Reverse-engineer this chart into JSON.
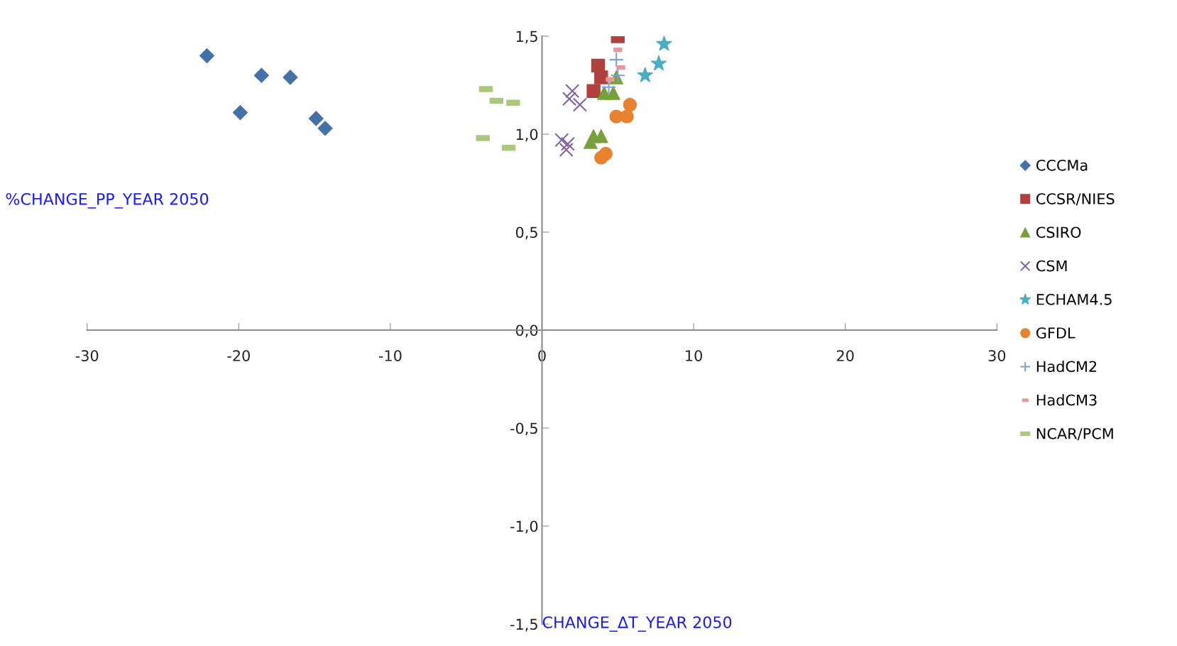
{
  "chart_data": {
    "type": "scatter",
    "xlabel": "CHANGE_ΔT_YEAR 2050",
    "ylabel": "%CHANGE_PP_YEAR 2050",
    "xlim": [
      -30,
      30
    ],
    "xticks": [
      -30,
      -20,
      -10,
      0,
      10,
      20,
      30
    ],
    "ylim": [
      -1.5,
      1.5
    ],
    "yticks": [
      {
        "value": -1.5,
        "label": "-1,5"
      },
      {
        "value": -1.0,
        "label": "-1,0"
      },
      {
        "value": -0.5,
        "label": "-0,5"
      },
      {
        "value": 0.0,
        "label": "0,0"
      },
      {
        "value": 0.5,
        "label": "0,5"
      },
      {
        "value": 1.0,
        "label": "1,0"
      },
      {
        "value": 1.5,
        "label": "1,5"
      }
    ],
    "grid": false,
    "legend": "right",
    "series": [
      {
        "name": "CCCMa",
        "color": "#4472a8",
        "marker": "diamond",
        "x": [
          -22.1,
          -18.5,
          -16.6,
          -19.9,
          -14.9,
          -14.3
        ],
        "values": [
          1.4,
          1.3,
          1.29,
          1.11,
          1.08,
          1.03
        ]
      },
      {
        "name": "CCSR/NIES",
        "color": "#b0413e",
        "marker": "square",
        "x": [
          5.0,
          3.7,
          3.9,
          3.4
        ],
        "values": [
          1.5,
          1.35,
          1.29,
          1.22
        ]
      },
      {
        "name": "CSIRO",
        "color": "#77a03a",
        "marker": "triangle",
        "x": [
          4.9,
          4.1,
          4.7,
          3.4,
          3.9,
          3.2
        ],
        "values": [
          1.29,
          1.21,
          1.21,
          0.99,
          0.99,
          0.96
        ]
      },
      {
        "name": "CSM",
        "color": "#8064a2",
        "marker": "cross",
        "x": [
          2.0,
          1.8,
          2.5,
          1.3,
          1.7,
          1.6
        ],
        "values": [
          1.22,
          1.18,
          1.15,
          0.97,
          0.95,
          0.92
        ]
      },
      {
        "name": "ECHAM4.5",
        "color": "#4bacc6",
        "marker": "star",
        "x": [
          8.05,
          7.7,
          6.8
        ],
        "values": [
          1.46,
          1.36,
          1.3
        ]
      },
      {
        "name": "GFDL",
        "color": "#e8822e",
        "marker": "circle",
        "x": [
          5.8,
          4.9,
          5.6,
          4.2,
          3.9
        ],
        "values": [
          1.15,
          1.09,
          1.09,
          0.9,
          0.88
        ]
      },
      {
        "name": "HadCM2",
        "color": "#7f9fd6",
        "marker": "plus",
        "x": [
          4.9,
          5.0,
          4.4
        ],
        "values": [
          1.38,
          1.3,
          1.24
        ]
      },
      {
        "name": "HadCM3",
        "color": "#e39a9a",
        "marker": "square",
        "x": [
          5.0,
          5.2,
          4.5
        ],
        "values": [
          1.43,
          1.34,
          1.28
        ]
      },
      {
        "name": "NCAR/PCM",
        "color": "#a9c77e",
        "marker": "square",
        "x": [
          -3.7,
          -3.0,
          -1.9,
          -3.9,
          -2.2
        ],
        "values": [
          1.23,
          1.17,
          1.16,
          0.98,
          0.93
        ]
      }
    ]
  }
}
